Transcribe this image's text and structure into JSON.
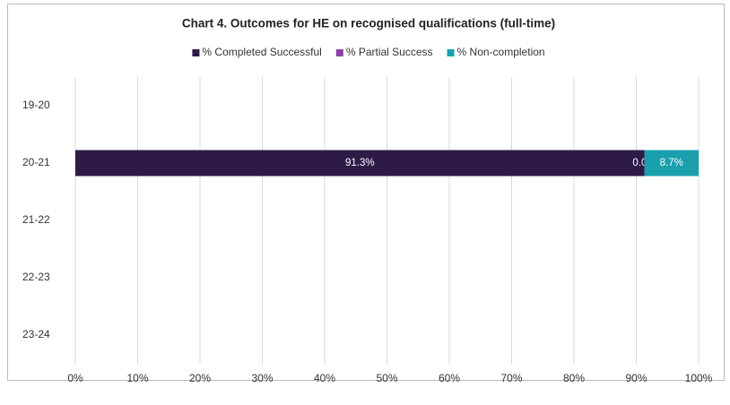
{
  "chart_data": {
    "type": "stacked_barh",
    "title": "Chart 4. Outcomes for HE on recognised qualifications (full-time)",
    "categories": [
      "19-20",
      "20-21",
      "21-22",
      "22-23",
      "23-24"
    ],
    "series": [
      {
        "name": "% Completed Successful",
        "color": "#2e1a47",
        "values": [
          null,
          91.3,
          null,
          null,
          null
        ],
        "value_labels": [
          null,
          "91.3%",
          null,
          null,
          null
        ]
      },
      {
        "name": "% Partial Success",
        "color": "#8e3fa8",
        "values": [
          null,
          0.0,
          null,
          null,
          null
        ],
        "value_labels": [
          null,
          "0.0%",
          null,
          null,
          null
        ]
      },
      {
        "name": "% Non-completion",
        "color": "#1a9fad",
        "values": [
          null,
          8.7,
          null,
          null,
          null
        ],
        "value_labels": [
          null,
          "8.7%",
          null,
          null,
          null
        ]
      }
    ],
    "xlim": [
      0,
      100
    ],
    "xticks": [
      {
        "value": 0,
        "label": "0%"
      },
      {
        "value": 10,
        "label": "10%"
      },
      {
        "value": 20,
        "label": "20%"
      },
      {
        "value": 30,
        "label": "30%"
      },
      {
        "value": 40,
        "label": "40%"
      },
      {
        "value": 50,
        "label": "50%"
      },
      {
        "value": 60,
        "label": "60%"
      },
      {
        "value": 70,
        "label": "70%"
      },
      {
        "value": 80,
        "label": "80%"
      },
      {
        "value": 90,
        "label": "90%"
      },
      {
        "value": 100,
        "label": "100%"
      }
    ],
    "grid": true,
    "legend": "top"
  }
}
